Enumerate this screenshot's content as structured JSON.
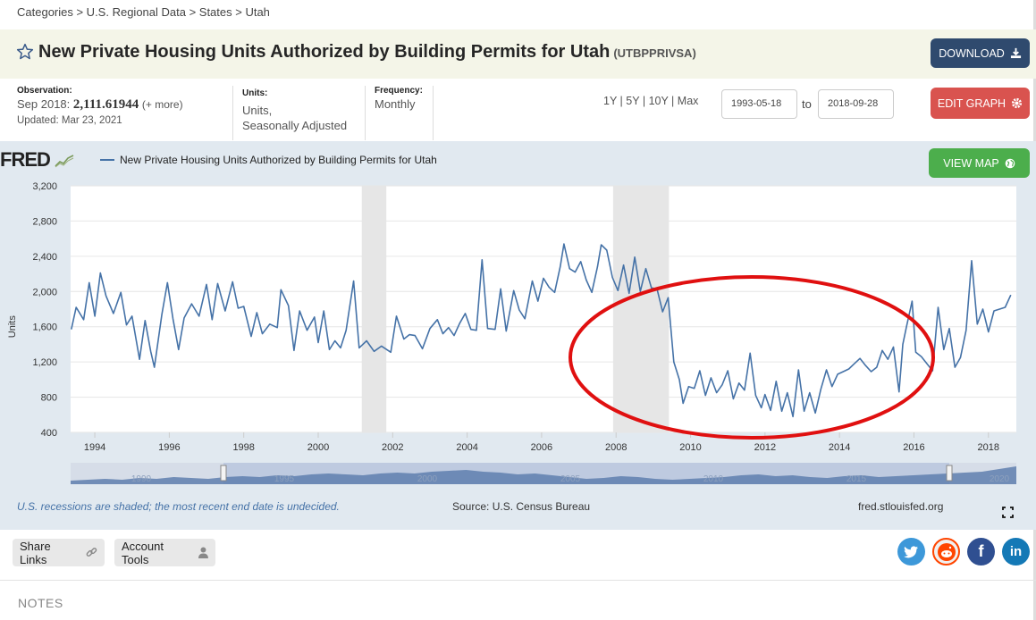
{
  "breadcrumb": "Categories > U.S. Regional Data > States > Utah",
  "title": {
    "text": "New Private Housing Units Authorized by Building Permits for Utah",
    "series_id": "(UTBPPRIVSA)"
  },
  "buttons": {
    "download": "DOWNLOAD",
    "edit_graph": "EDIT GRAPH",
    "view_map": "VIEW MAP"
  },
  "observation": {
    "label": "Observation:",
    "period": "Sep 2018:",
    "value": "2,111.61944",
    "more": "(+ more)",
    "updated": "Updated: Mar 23, 2021"
  },
  "units": {
    "label": "Units:",
    "line1": "Units,",
    "line2": "Seasonally Adjusted"
  },
  "frequency": {
    "label": "Frequency:",
    "value": "Monthly"
  },
  "range_links": [
    "1Y",
    "5Y",
    "10Y",
    "Max"
  ],
  "date_range": {
    "start": "1993-05-18",
    "to_label": "to",
    "end": "2018-09-28"
  },
  "graph": {
    "logo": "FRED",
    "legend": "New Private Housing Units Authorized by Building Permits for Utah",
    "recession_note": "U.S. recessions are shaded; the most recent end date is undecided.",
    "source": "Source: U.S. Census Bureau",
    "url": "fred.stlouisfed.org",
    "navigator_labels": [
      "1990",
      "1995",
      "2000",
      "2005",
      "2010",
      "2015",
      "2020"
    ]
  },
  "chart_data": {
    "type": "line",
    "title": "",
    "xlabel": "",
    "ylabel": "Units",
    "xlim": [
      1993.35,
      2018.75
    ],
    "ylim": [
      400,
      3200
    ],
    "yticks": [
      400,
      800,
      1200,
      1600,
      2000,
      2400,
      2800,
      3200
    ],
    "ytick_labels": [
      "400",
      "800",
      "1,200",
      "1,600",
      "2,000",
      "2,400",
      "2,800",
      "3,200"
    ],
    "xticks": [
      1994,
      1996,
      1998,
      2000,
      2002,
      2004,
      2006,
      2008,
      2010,
      2012,
      2014,
      2016,
      2018
    ],
    "recessions": [
      [
        2001.17,
        2001.83
      ],
      [
        2007.92,
        2009.42
      ]
    ],
    "series": [
      {
        "name": "New Private Housing Units Authorized by Building Permits for Utah",
        "color": "#4572a7",
        "points": [
          [
            1993.37,
            1570
          ],
          [
            1993.5,
            1820
          ],
          [
            1993.7,
            1680
          ],
          [
            1993.85,
            2100
          ],
          [
            1994.0,
            1720
          ],
          [
            1994.15,
            2210
          ],
          [
            1994.3,
            1950
          ],
          [
            1994.5,
            1750
          ],
          [
            1994.7,
            1990
          ],
          [
            1994.85,
            1620
          ],
          [
            1995.0,
            1720
          ],
          [
            1995.2,
            1230
          ],
          [
            1995.35,
            1670
          ],
          [
            1995.5,
            1320
          ],
          [
            1995.6,
            1140
          ],
          [
            1995.8,
            1740
          ],
          [
            1995.95,
            2100
          ],
          [
            1996.1,
            1690
          ],
          [
            1996.25,
            1340
          ],
          [
            1996.4,
            1700
          ],
          [
            1996.6,
            1860
          ],
          [
            1996.8,
            1720
          ],
          [
            1997.0,
            2080
          ],
          [
            1997.15,
            1680
          ],
          [
            1997.3,
            2090
          ],
          [
            1997.5,
            1780
          ],
          [
            1997.7,
            2110
          ],
          [
            1997.85,
            1810
          ],
          [
            1998.0,
            1830
          ],
          [
            1998.2,
            1490
          ],
          [
            1998.35,
            1760
          ],
          [
            1998.5,
            1520
          ],
          [
            1998.7,
            1630
          ],
          [
            1998.9,
            1590
          ],
          [
            1999.0,
            2020
          ],
          [
            1999.2,
            1840
          ],
          [
            1999.35,
            1330
          ],
          [
            1999.5,
            1780
          ],
          [
            1999.7,
            1560
          ],
          [
            1999.9,
            1710
          ],
          [
            2000.0,
            1420
          ],
          [
            2000.15,
            1780
          ],
          [
            2000.3,
            1340
          ],
          [
            2000.45,
            1440
          ],
          [
            2000.6,
            1360
          ],
          [
            2000.75,
            1560
          ],
          [
            2000.95,
            2120
          ],
          [
            2001.1,
            1360
          ],
          [
            2001.3,
            1440
          ],
          [
            2001.5,
            1320
          ],
          [
            2001.7,
            1380
          ],
          [
            2001.95,
            1310
          ],
          [
            2002.1,
            1720
          ],
          [
            2002.3,
            1460
          ],
          [
            2002.45,
            1510
          ],
          [
            2002.6,
            1500
          ],
          [
            2002.8,
            1350
          ],
          [
            2003.0,
            1580
          ],
          [
            2003.2,
            1680
          ],
          [
            2003.35,
            1520
          ],
          [
            2003.5,
            1590
          ],
          [
            2003.65,
            1500
          ],
          [
            2003.8,
            1640
          ],
          [
            2003.95,
            1750
          ],
          [
            2004.1,
            1570
          ],
          [
            2004.25,
            1560
          ],
          [
            2004.4,
            2360
          ],
          [
            2004.55,
            1580
          ],
          [
            2004.75,
            1570
          ],
          [
            2004.9,
            2030
          ],
          [
            2005.05,
            1550
          ],
          [
            2005.25,
            2010
          ],
          [
            2005.4,
            1790
          ],
          [
            2005.55,
            1690
          ],
          [
            2005.75,
            2120
          ],
          [
            2005.9,
            1890
          ],
          [
            2006.05,
            2150
          ],
          [
            2006.2,
            2050
          ],
          [
            2006.35,
            1990
          ],
          [
            2006.5,
            2280
          ],
          [
            2006.6,
            2540
          ],
          [
            2006.75,
            2260
          ],
          [
            2006.9,
            2220
          ],
          [
            2007.05,
            2340
          ],
          [
            2007.2,
            2130
          ],
          [
            2007.35,
            1990
          ],
          [
            2007.5,
            2280
          ],
          [
            2007.6,
            2530
          ],
          [
            2007.75,
            2470
          ],
          [
            2007.9,
            2160
          ],
          [
            2008.05,
            2010
          ],
          [
            2008.2,
            2300
          ],
          [
            2008.35,
            1980
          ],
          [
            2008.5,
            2390
          ],
          [
            2008.65,
            2000
          ],
          [
            2008.8,
            2260
          ],
          [
            2008.95,
            2040
          ],
          [
            2009.1,
            2030
          ],
          [
            2009.25,
            1770
          ],
          [
            2009.4,
            1930
          ],
          [
            2009.55,
            1200
          ],
          [
            2009.7,
            1000
          ],
          [
            2009.8,
            730
          ],
          [
            2009.95,
            920
          ],
          [
            2010.1,
            900
          ],
          [
            2010.25,
            1100
          ],
          [
            2010.4,
            820
          ],
          [
            2010.55,
            1020
          ],
          [
            2010.7,
            850
          ],
          [
            2010.85,
            940
          ],
          [
            2011.0,
            1100
          ],
          [
            2011.15,
            780
          ],
          [
            2011.3,
            960
          ],
          [
            2011.45,
            880
          ],
          [
            2011.6,
            1300
          ],
          [
            2011.75,
            820
          ],
          [
            2011.9,
            680
          ],
          [
            2012.0,
            830
          ],
          [
            2012.15,
            650
          ],
          [
            2012.3,
            980
          ],
          [
            2012.45,
            640
          ],
          [
            2012.6,
            850
          ],
          [
            2012.75,
            580
          ],
          [
            2012.9,
            1110
          ],
          [
            2013.05,
            640
          ],
          [
            2013.2,
            850
          ],
          [
            2013.35,
            620
          ],
          [
            2013.5,
            890
          ],
          [
            2013.65,
            1110
          ],
          [
            2013.8,
            920
          ],
          [
            2013.95,
            1060
          ],
          [
            2014.1,
            1090
          ],
          [
            2014.25,
            1120
          ],
          [
            2014.4,
            1180
          ],
          [
            2014.55,
            1240
          ],
          [
            2014.7,
            1160
          ],
          [
            2014.85,
            1090
          ],
          [
            2015.0,
            1140
          ],
          [
            2015.15,
            1330
          ],
          [
            2015.3,
            1230
          ],
          [
            2015.45,
            1370
          ],
          [
            2015.6,
            860
          ],
          [
            2015.7,
            1400
          ],
          [
            2015.8,
            1600
          ],
          [
            2015.95,
            1890
          ],
          [
            2016.05,
            1310
          ],
          [
            2016.2,
            1260
          ],
          [
            2016.35,
            1180
          ],
          [
            2016.5,
            1100
          ],
          [
            2016.65,
            1820
          ],
          [
            2016.8,
            1340
          ],
          [
            2016.95,
            1580
          ],
          [
            2017.1,
            1140
          ],
          [
            2017.25,
            1250
          ],
          [
            2017.4,
            1560
          ],
          [
            2017.55,
            2350
          ],
          [
            2017.7,
            1630
          ],
          [
            2017.85,
            1800
          ],
          [
            2018.0,
            1540
          ],
          [
            2018.15,
            1780
          ],
          [
            2018.3,
            1800
          ],
          [
            2018.45,
            1820
          ],
          [
            2018.6,
            1960
          ]
        ]
      }
    ]
  }
}
